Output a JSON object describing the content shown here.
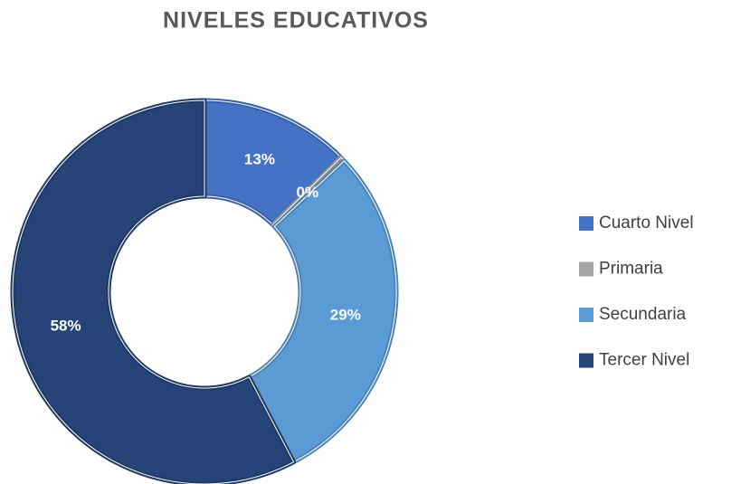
{
  "chart_data": {
    "type": "donut",
    "title": "NIVELES EDUCATIVOS",
    "categories": [
      "Cuarto Nivel",
      "Primaria",
      "Secundaria",
      "Tercer Nivel"
    ],
    "values": [
      12.6,
      0.4,
      29.3,
      57.7
    ],
    "value_labels": [
      "13%",
      "0%",
      "29%",
      "58%"
    ],
    "colors": [
      "#4472c4",
      "#a5a5a5",
      "#5b9bd5",
      "#264478"
    ],
    "legend": "right"
  }
}
